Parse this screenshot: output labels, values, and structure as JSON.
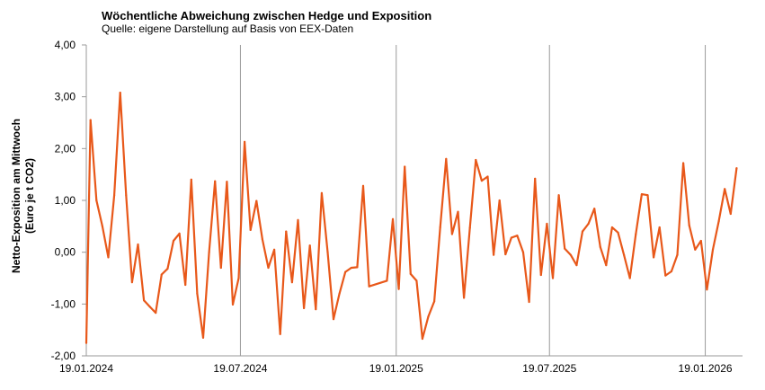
{
  "header": {
    "title": "Wöchentliche Abweichung zwischen Hedge und Exposition",
    "subtitle": "Quelle: eigene Darstellung auf Basis von EEX-Daten"
  },
  "chart_data": {
    "type": "line",
    "title": "Wöchentliche Abweichung zwischen Hedge und Exposition",
    "subtitle": "Quelle: eigene Darstellung auf Basis von EEX-Daten",
    "ylabel_line1": "Netto-Exposition am Mittwoch",
    "ylabel_line2": "(Euro je t CO2)",
    "xlabel": "",
    "ylim": [
      -2,
      4
    ],
    "y_ticks": [
      "4,00",
      "3,00",
      "2,00",
      "1,00",
      "0,00",
      "-1,00",
      "-2,00"
    ],
    "x_tick_labels": [
      "19.01.2024",
      "19.07.2024",
      "19.01.2025",
      "19.07.2025",
      "19.01.2026"
    ],
    "grid": "vertical",
    "line_color": "#E8581A",
    "x_start": "2024-01-19",
    "x_end": "2026-03-04",
    "series": [
      {
        "values": [
          [
            "2024-01-19",
            -1.75
          ],
          [
            "2024-01-24",
            2.55
          ],
          [
            "2024-01-31",
            1.0
          ],
          [
            "2024-02-07",
            0.5
          ],
          [
            "2024-02-14",
            -0.1
          ],
          [
            "2024-02-21",
            1.1
          ],
          [
            "2024-02-28",
            3.08
          ],
          [
            "2024-03-06",
            1.1
          ],
          [
            "2024-03-13",
            -0.58
          ],
          [
            "2024-03-20",
            0.15
          ],
          [
            "2024-03-27",
            -0.93
          ],
          [
            "2024-04-03",
            -1.05
          ],
          [
            "2024-04-10",
            -1.17
          ],
          [
            "2024-04-17",
            -0.43
          ],
          [
            "2024-04-24",
            -0.32
          ],
          [
            "2024-05-01",
            0.22
          ],
          [
            "2024-05-08",
            0.36
          ],
          [
            "2024-05-15",
            -0.63
          ],
          [
            "2024-05-22",
            1.4
          ],
          [
            "2024-05-29",
            -0.8
          ],
          [
            "2024-06-05",
            -1.65
          ],
          [
            "2024-06-12",
            0.0
          ],
          [
            "2024-06-19",
            1.37
          ],
          [
            "2024-06-26",
            -0.3
          ],
          [
            "2024-07-03",
            1.36
          ],
          [
            "2024-07-10",
            -1.01
          ],
          [
            "2024-07-17",
            -0.5
          ],
          [
            "2024-07-24",
            2.13
          ],
          [
            "2024-07-31",
            0.43
          ],
          [
            "2024-08-07",
            0.99
          ],
          [
            "2024-08-14",
            0.25
          ],
          [
            "2024-08-21",
            -0.3
          ],
          [
            "2024-08-28",
            0.05
          ],
          [
            "2024-09-04",
            -1.58
          ],
          [
            "2024-09-11",
            0.4
          ],
          [
            "2024-09-18",
            -0.58
          ],
          [
            "2024-09-25",
            0.62
          ],
          [
            "2024-10-02",
            -1.08
          ],
          [
            "2024-10-09",
            0.13
          ],
          [
            "2024-10-16",
            -1.1
          ],
          [
            "2024-10-23",
            1.14
          ],
          [
            "2024-10-30",
            0.0
          ],
          [
            "2024-11-06",
            -1.29
          ],
          [
            "2024-11-13",
            -0.8
          ],
          [
            "2024-11-20",
            -0.38
          ],
          [
            "2024-11-27",
            -0.3
          ],
          [
            "2024-12-04",
            -0.29
          ],
          [
            "2024-12-11",
            1.28
          ],
          [
            "2024-12-18",
            -0.66
          ],
          [
            "2025-01-08",
            -0.55
          ],
          [
            "2025-01-15",
            0.64
          ],
          [
            "2025-01-22",
            -0.71
          ],
          [
            "2025-01-29",
            1.65
          ],
          [
            "2025-02-05",
            -0.42
          ],
          [
            "2025-02-12",
            -0.55
          ],
          [
            "2025-02-19",
            -1.67
          ],
          [
            "2025-02-26",
            -1.24
          ],
          [
            "2025-03-05",
            -0.95
          ],
          [
            "2025-03-12",
            0.48
          ],
          [
            "2025-03-19",
            1.8
          ],
          [
            "2025-03-26",
            0.35
          ],
          [
            "2025-04-02",
            0.78
          ],
          [
            "2025-04-09",
            -0.88
          ],
          [
            "2025-04-16",
            0.47
          ],
          [
            "2025-04-23",
            1.78
          ],
          [
            "2025-04-30",
            1.38
          ],
          [
            "2025-05-07",
            1.46
          ],
          [
            "2025-05-14",
            -0.05
          ],
          [
            "2025-05-21",
            1.0
          ],
          [
            "2025-05-28",
            -0.04
          ],
          [
            "2025-06-04",
            0.28
          ],
          [
            "2025-06-11",
            0.32
          ],
          [
            "2025-06-18",
            0.0
          ],
          [
            "2025-06-25",
            -0.96
          ],
          [
            "2025-07-02",
            1.42
          ],
          [
            "2025-07-09",
            -0.44
          ],
          [
            "2025-07-16",
            0.55
          ],
          [
            "2025-07-23",
            -0.5
          ],
          [
            "2025-07-30",
            1.1
          ],
          [
            "2025-08-06",
            0.07
          ],
          [
            "2025-08-13",
            -0.05
          ],
          [
            "2025-08-20",
            -0.25
          ],
          [
            "2025-08-27",
            0.4
          ],
          [
            "2025-09-03",
            0.55
          ],
          [
            "2025-09-10",
            0.84
          ],
          [
            "2025-09-17",
            0.1
          ],
          [
            "2025-09-24",
            -0.25
          ],
          [
            "2025-10-01",
            0.48
          ],
          [
            "2025-10-08",
            0.38
          ],
          [
            "2025-10-15",
            -0.05
          ],
          [
            "2025-10-22",
            -0.5
          ],
          [
            "2025-10-29",
            0.35
          ],
          [
            "2025-11-05",
            1.12
          ],
          [
            "2025-11-12",
            1.1
          ],
          [
            "2025-11-19",
            -0.1
          ],
          [
            "2025-11-26",
            0.48
          ],
          [
            "2025-12-03",
            -0.45
          ],
          [
            "2025-12-10",
            -0.37
          ],
          [
            "2025-12-17",
            -0.05
          ],
          [
            "2025-12-24",
            1.72
          ],
          [
            "2025-12-31",
            0.52
          ],
          [
            "2026-01-07",
            0.05
          ],
          [
            "2026-01-14",
            0.22
          ],
          [
            "2026-01-21",
            -0.72
          ],
          [
            "2026-01-28",
            0.05
          ],
          [
            "2026-02-04",
            0.6
          ],
          [
            "2026-02-11",
            1.22
          ],
          [
            "2026-02-18",
            0.74
          ],
          [
            "2026-02-25",
            1.62
          ]
        ]
      }
    ]
  }
}
